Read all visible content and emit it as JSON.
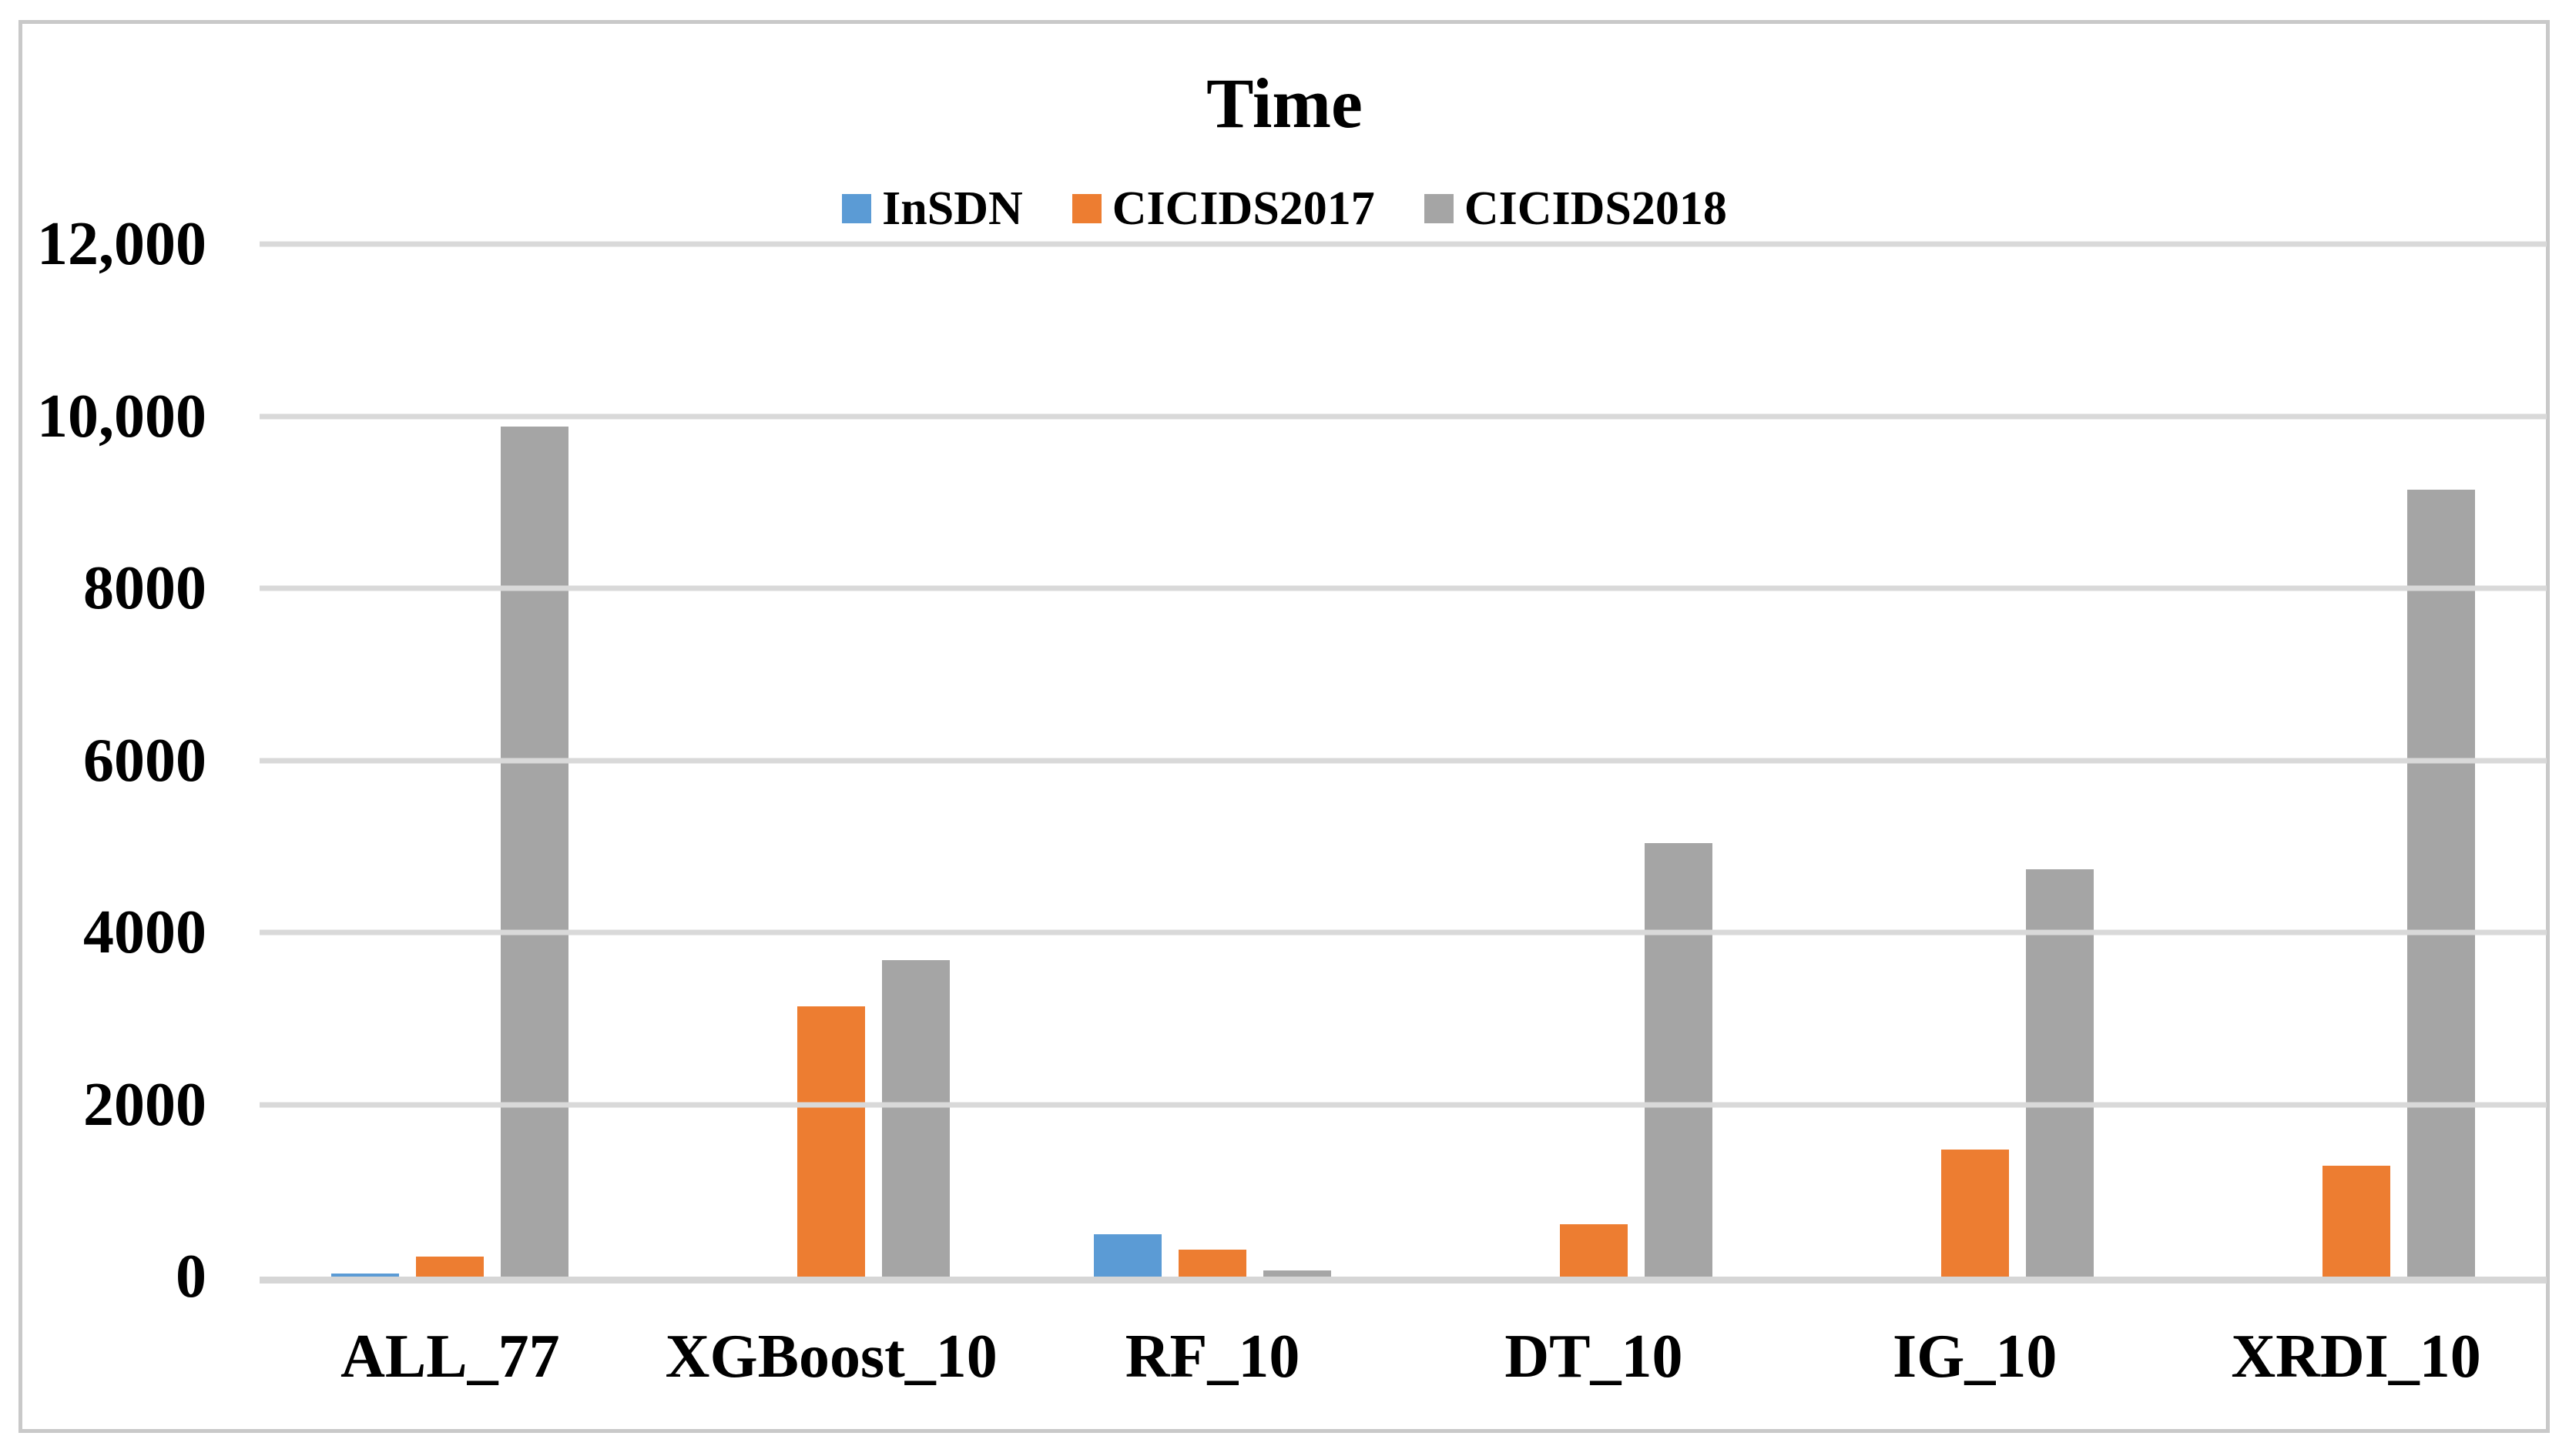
{
  "figure": {
    "border_color": "#c9c9c9",
    "background_color": "#ffffff"
  },
  "chart_data": {
    "type": "bar",
    "title": "Time",
    "categories": [
      "ALL_77",
      "XGBoost_10",
      "RF_10",
      "DT_10",
      "IG_10",
      "XRDI_10"
    ],
    "series": [
      {
        "name": "InSDN",
        "color": "#5B9BD5",
        "values": [
          40,
          0,
          490,
          0,
          0,
          0
        ]
      },
      {
        "name": "CICIDS2017",
        "color": "#ED7D31",
        "values": [
          230,
          3140,
          310,
          610,
          1480,
          1290
        ]
      },
      {
        "name": "CICIDS2018",
        "color": "#A5A5A5",
        "values": [
          9880,
          3680,
          70,
          5040,
          4730,
          9150
        ]
      }
    ],
    "xlabel": "",
    "ylabel": "",
    "ylim": [
      0,
      12000
    ],
    "ytick_interval": 2000,
    "ytick_labels": [
      "0",
      "2000",
      "4000",
      "6000",
      "8000",
      "10,000",
      "12,000"
    ],
    "grid": "horizontal",
    "grid_color": "#D9D9D9",
    "axis_line_color": "#D6D6D6",
    "legend_position": "top"
  }
}
